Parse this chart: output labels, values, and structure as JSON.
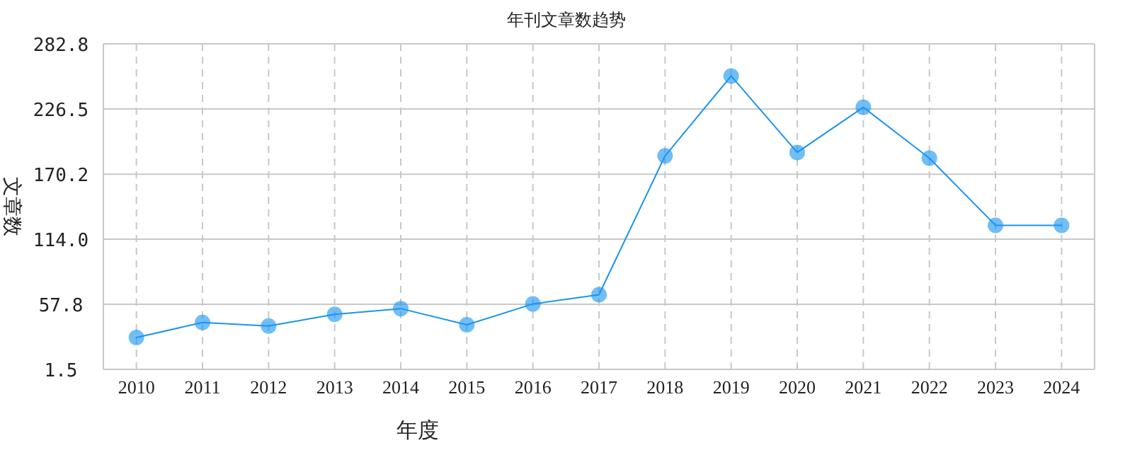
{
  "chart_data": {
    "type": "line",
    "title": "年刊文章数趋势",
    "xlabel": "年度",
    "ylabel": "文章数",
    "categories": [
      "2010",
      "2011",
      "2012",
      "2013",
      "2014",
      "2015",
      "2016",
      "2017",
      "2018",
      "2019",
      "2020",
      "2021",
      "2022",
      "2023",
      "2024"
    ],
    "series": [
      {
        "color": "#1a94f0",
        "values": [
          29,
          42,
          39,
          49,
          54,
          40,
          58,
          66,
          186,
          255,
          189,
          228,
          184,
          126,
          126
        ]
      }
    ],
    "ylim": [
      1.5,
      282.8
    ],
    "yticks": [
      {
        "value": 1.5,
        "label": "1.5"
      },
      {
        "value": 57.8,
        "label": "57.8"
      },
      {
        "value": 114,
        "label": "114.0"
      },
      {
        "value": 170.2,
        "label": "170.2"
      },
      {
        "value": 226.5,
        "label": "226.5"
      },
      {
        "value": 282.8,
        "label": "282.8"
      }
    ],
    "grid": true,
    "marker": "circle",
    "line_style": "solid"
  }
}
